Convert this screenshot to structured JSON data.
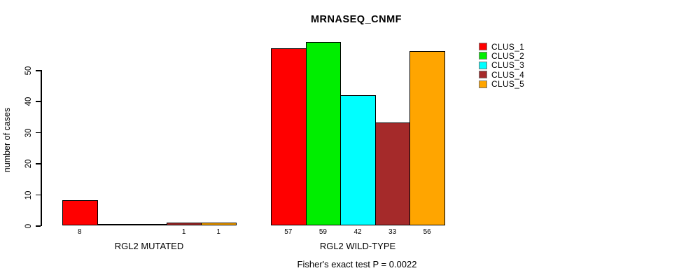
{
  "chart_data": {
    "type": "bar",
    "title": "MRNASEQ_CNMF",
    "ylabel": "number of cases",
    "xlabel": "",
    "ylim": [
      0,
      50
    ],
    "yticks": [
      0,
      10,
      20,
      30,
      40,
      50
    ],
    "grid": false,
    "background_color": "#ffffff",
    "bar_border_color": "#000000",
    "categories": [
      "RGL2 MUTATED",
      "RGL2 WILD-TYPE"
    ],
    "series": [
      {
        "name": "CLUS_1",
        "color": "#ff0000",
        "values": [
          8,
          57
        ]
      },
      {
        "name": "CLUS_2",
        "color": "#00ee00",
        "values": [
          0,
          59
        ]
      },
      {
        "name": "CLUS_3",
        "color": "#00ffff",
        "values": [
          0,
          42
        ]
      },
      {
        "name": "CLUS_4",
        "color": "#a52a2a",
        "values": [
          1,
          33
        ]
      },
      {
        "name": "CLUS_5",
        "color": "#ffa500",
        "values": [
          1,
          56
        ]
      }
    ],
    "bar_value_labels": {
      "shown": true,
      "hide_zero": true
    },
    "legend": {
      "position": "right",
      "entries": [
        "CLUS_1",
        "CLUS_2",
        "CLUS_3",
        "CLUS_4",
        "CLUS_5"
      ]
    },
    "annotation": "Fisher's exact test P = 0.0022"
  }
}
